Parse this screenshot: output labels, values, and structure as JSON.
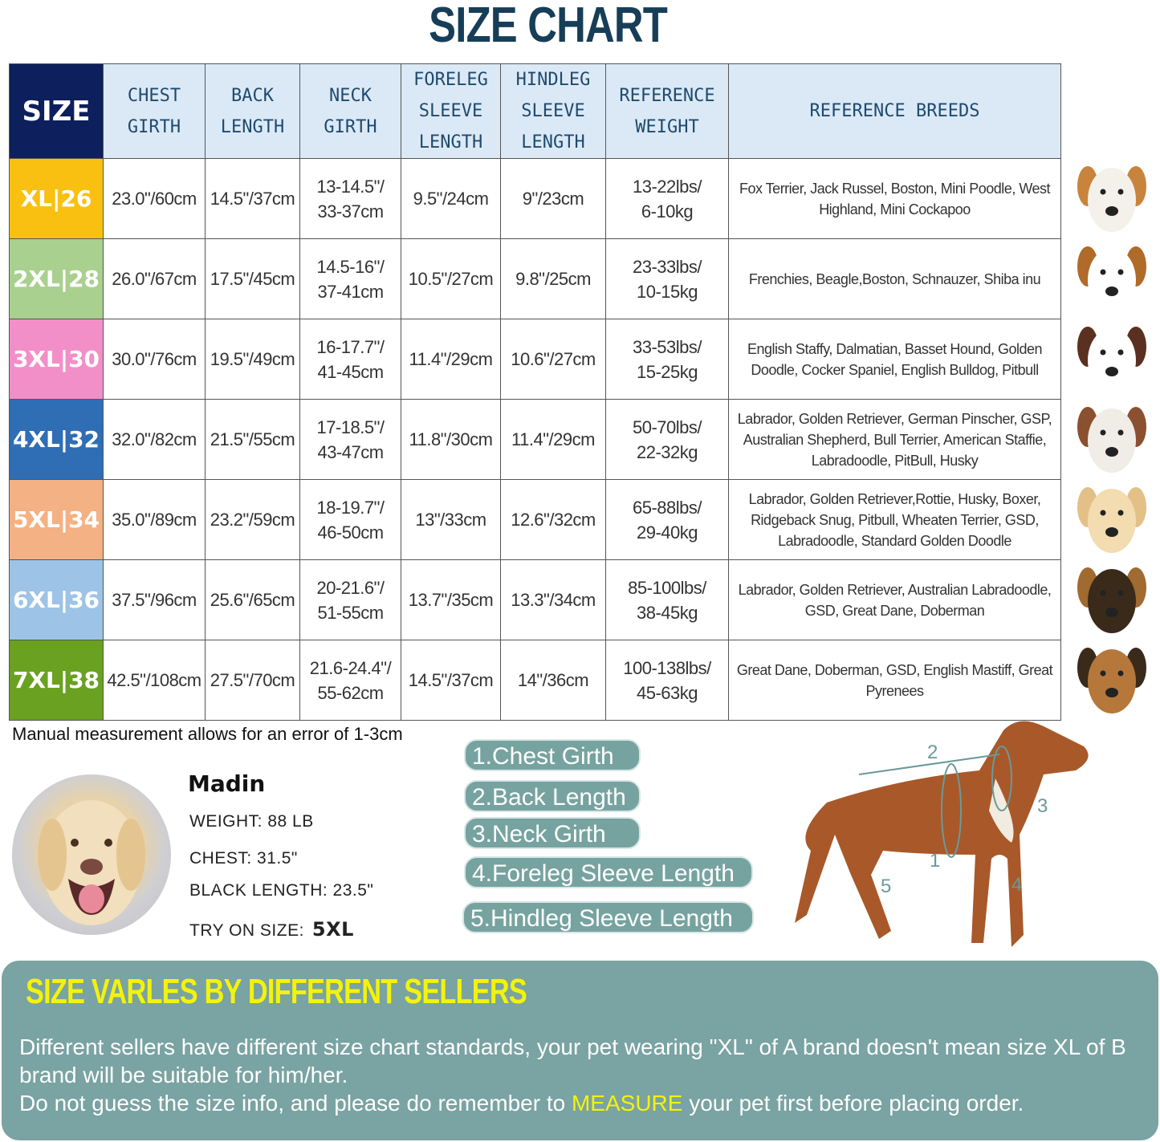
{
  "title": "SIZE CHART",
  "table": {
    "headers": [
      "SIZE",
      "CHEST GIRTH",
      "BACK LENGTH",
      "NECK GIRTH",
      "FORELEG SLEEVE LENGTH",
      "HINDLEG SLEEVE LENGTH",
      "REFERENCE WEIGHT",
      "REFERENCE BREEDS"
    ],
    "header_lines": [
      [
        "SIZE"
      ],
      [
        "CHEST",
        "GIRTH"
      ],
      [
        "BACK",
        "LENGTH"
      ],
      [
        "NECK",
        "GIRTH"
      ],
      [
        "FORELEG",
        "SLEEVE",
        "LENGTH"
      ],
      [
        "HINDLEG",
        "SLEEVE",
        "LENGTH"
      ],
      [
        "REFERENCE",
        "WEIGHT"
      ],
      [
        "REFERENCE  BREEDS"
      ]
    ],
    "rows": [
      {
        "size": "XL|26",
        "color": "#f9c012",
        "chest": "23.0\"/60cm",
        "back": "14.5\"/37cm",
        "neck": [
          "13-14.5\"/",
          "33-37cm"
        ],
        "foreleg": "9.5\"/24cm",
        "hindleg": "9\"/23cm",
        "weight": [
          "13-22lbs/",
          "6-10kg"
        ],
        "breeds": "Fox Terrier, Jack Russel, Boston, Mini Poodle, West Highland, Mini Cockapoo"
      },
      {
        "size": "2XL|28",
        "color": "#a9d08e",
        "chest": "26.0\"/67cm",
        "back": "17.5\"/45cm",
        "neck": [
          "14.5-16\"/",
          "37-41cm"
        ],
        "foreleg": "10.5\"/27cm",
        "hindleg": "9.8\"/25cm",
        "weight": [
          "23-33lbs/",
          "10-15kg"
        ],
        "breeds": "Frenchies, Beagle,Boston, Schnauzer, Shiba inu"
      },
      {
        "size": "3XL|30",
        "color": "#f28fc8",
        "chest": "30.0\"/76cm",
        "back": "19.5\"/49cm",
        "neck": [
          "16-17.7\"/",
          "41-45cm"
        ],
        "foreleg": "11.4\"/29cm",
        "hindleg": "10.6\"/27cm",
        "weight": [
          "33-53lbs/",
          "15-25kg"
        ],
        "breeds": "English Staffy, Dalmatian, Basset Hound, Golden Doodle, Cocker Spaniel, English Bulldog, Pitbull"
      },
      {
        "size": "4XL|32",
        "color": "#2f6db5",
        "chest": "32.0\"/82cm",
        "back": "21.5\"/55cm",
        "neck": [
          "17-18.5\"/",
          "43-47cm"
        ],
        "foreleg": "11.8\"/30cm",
        "hindleg": "11.4\"/29cm",
        "weight": [
          "50-70lbs/",
          "22-32kg"
        ],
        "breeds": "Labrador, Golden Retriever, German Pinscher, GSP, Australian Shepherd, Bull Terrier, American Staffie, Labradoodle, PitBull, Husky"
      },
      {
        "size": "5XL|34",
        "color": "#f4b183",
        "chest": "35.0\"/89cm",
        "back": "23.2\"/59cm",
        "neck": [
          "18-19.7\"/",
          "46-50cm"
        ],
        "foreleg": "13\"/33cm",
        "hindleg": "12.6\"/32cm",
        "weight": [
          "65-88lbs/",
          "29-40kg"
        ],
        "breeds": "Labrador, Golden Retriever,Rottie, Husky, Boxer, Ridgeback Snug, Pitbull, Wheaten Terrier, GSD, Labradoodle,  Standard Golden Doodle"
      },
      {
        "size": "6XL|36",
        "color": "#9dc3e6",
        "chest": "37.5\"/96cm",
        "back": "25.6\"/65cm",
        "neck": [
          "20-21.6\"/",
          "51-55cm"
        ],
        "foreleg": "13.7\"/35cm",
        "hindleg": "13.3\"/34cm",
        "weight": [
          "85-100lbs/",
          "38-45kg"
        ],
        "breeds": "Labrador, Golden Retriever, Australian Labradoodle, GSD, Great Dane, Doberman"
      },
      {
        "size": "7XL|38",
        "color": "#6aa121",
        "chest": "42.5\"/108cm",
        "back": "27.5\"/70cm",
        "neck": [
          "21.6-24.4\"/",
          "55-62cm"
        ],
        "foreleg": "14.5\"/37cm",
        "hindleg": "14\"/36cm",
        "weight": [
          "100-138lbs/",
          "45-63kg"
        ],
        "breeds": "Great Dane, Doberman, GSD, English Mastiff, Great Pyrenees"
      }
    ]
  },
  "note": "Manual measurement allows for an error of 1-3cm",
  "example": {
    "name": "Madin",
    "weight": "WEIGHT: 88 LB",
    "chest": "CHEST: 31.5\"",
    "length": "BLACK LENGTH: 23.5\"",
    "try_label": "TRY ON SIZE:",
    "try_value": "5XL"
  },
  "measurements": [
    "1.Chest Girth",
    "2.Back Length",
    "3.Neck Girth",
    "4.Foreleg Sleeve Length",
    "5.Hindleg Sleeve Length"
  ],
  "diagram_labels": [
    "1",
    "2",
    "3",
    "4",
    "5"
  ],
  "panel": {
    "heading": "SIZE VARLES BY DIFFERENT SELLERS",
    "line1": "Different sellers have different size chart standards, your pet wearing \"XL\" of A brand doesn't mean size  XL of B brand will be suitable for him/her.",
    "line2a": "Do not guess the size info, and please do remember to",
    "line2b": "MEASURE",
    "line2c": "your pet first before placing order."
  },
  "colors": {
    "title": "#173e58",
    "header_bg": "#dbe9f6",
    "size_header": "#0d1f5c",
    "pill": "#76a3a0",
    "panel": "#7aa3a3",
    "highlight": "#f3f30a"
  }
}
